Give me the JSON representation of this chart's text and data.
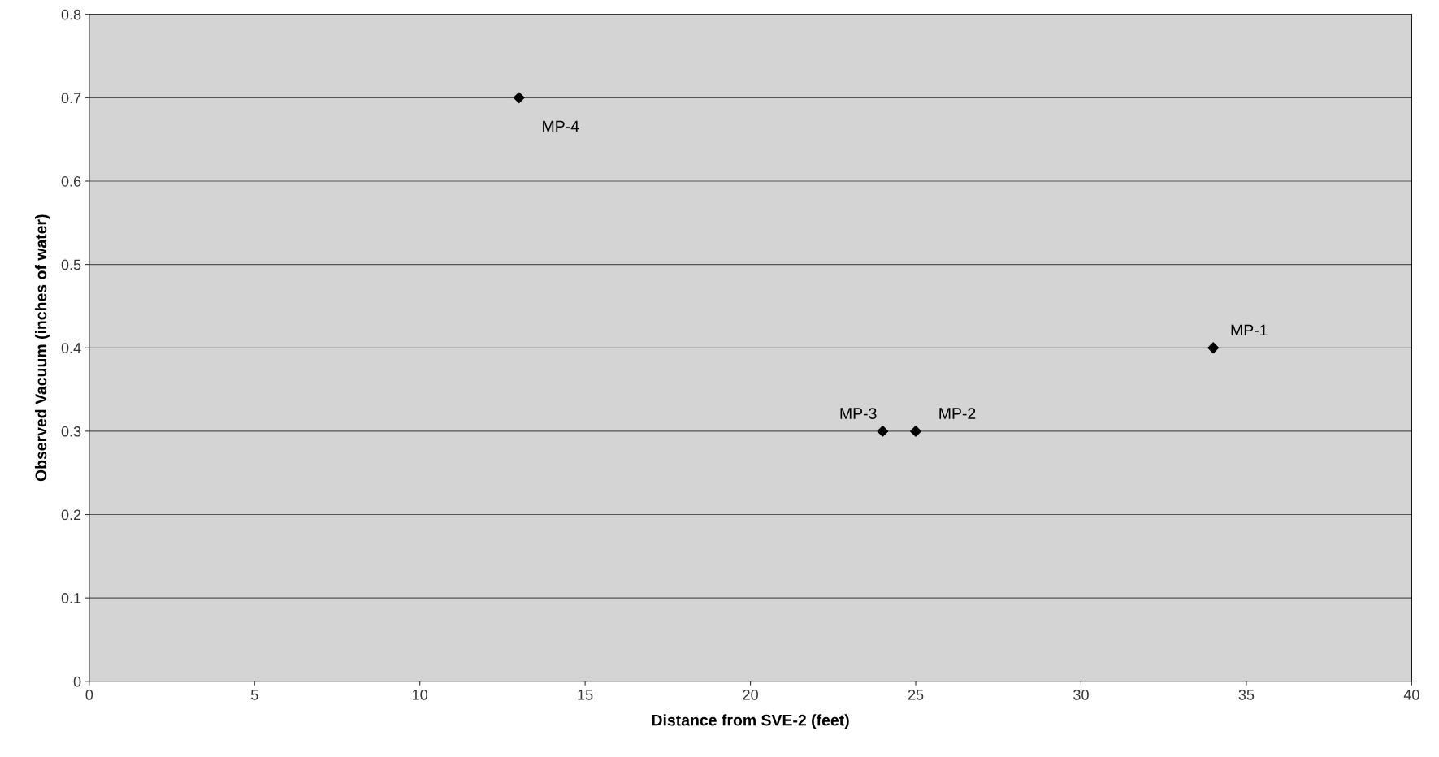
{
  "chart_data": {
    "type": "scatter",
    "xlabel": "Distance from SVE-2 (feet)",
    "ylabel": "Observed Vacuum (inches of water)",
    "x": [
      13,
      24,
      25,
      34
    ],
    "series": [
      {
        "color": "#000000",
        "values": [
          0.7,
          0.3,
          0.3,
          0.4
        ]
      }
    ],
    "marker": "diamond",
    "grid": "y",
    "xlim": [
      0,
      40
    ],
    "xticks": [
      0,
      5,
      10,
      15,
      20,
      25,
      30,
      35,
      40
    ],
    "ylim": [
      0,
      0.8
    ],
    "yticks": [
      0,
      0.1,
      0.2,
      0.3,
      0.4,
      0.5,
      0.6,
      0.7,
      0.8
    ],
    "annotations": [
      {
        "text": "MP-4",
        "x": 13,
        "y": 0.7
      },
      {
        "text": "MP-3",
        "x": 24,
        "y": 0.3
      },
      {
        "text": "MP-2",
        "x": 25,
        "y": 0.3
      },
      {
        "text": "MP-1",
        "x": 34,
        "y": 0.4
      }
    ]
  }
}
